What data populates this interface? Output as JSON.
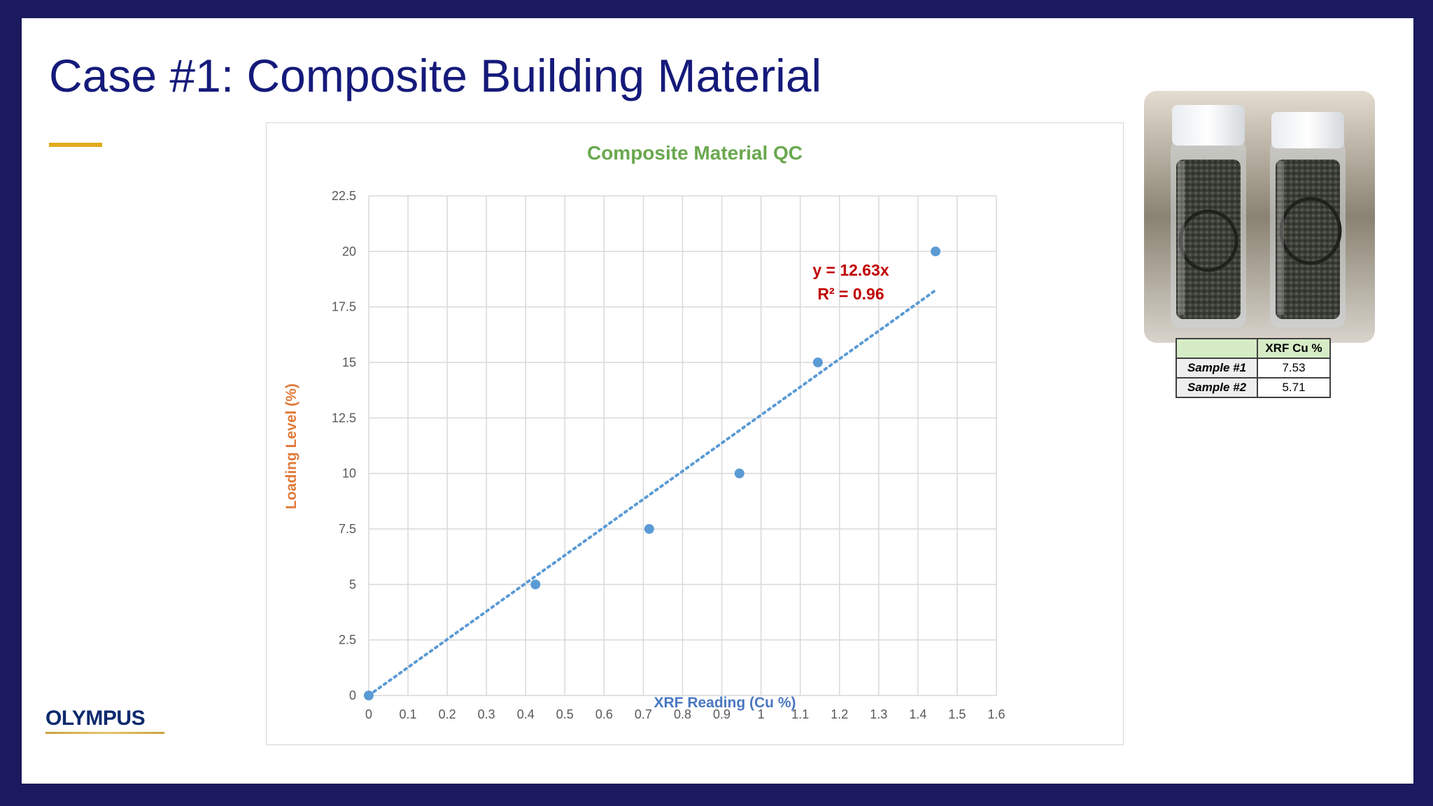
{
  "slide": {
    "title": "Case #1: Composite Building Material",
    "logo_text": "OLYMPUS"
  },
  "colors": {
    "title": "#151a7a",
    "accent": "#e2aa1c",
    "chart_title": "#6aa84f",
    "ylabel": "#e07b39",
    "xlabel": "#4a77c0",
    "points": "#5b9bd5",
    "equation": "#c00000"
  },
  "chart_data": {
    "type": "scatter",
    "title": "Composite Material QC",
    "xlabel": "XRF Reading (Cu %)",
    "ylabel": "Loading Level (%)",
    "xlim": [
      0,
      1.6
    ],
    "ylim": [
      0,
      22.5
    ],
    "xticks": [
      "0",
      "0.1",
      "0.2",
      "0.3",
      "0.4",
      "0.5",
      "0.6",
      "0.7",
      "0.8",
      "0.9",
      "1",
      "1.1",
      "1.2",
      "1.3",
      "1.4",
      "1.5",
      "1.6"
    ],
    "yticks": [
      "0",
      "2.5",
      "5",
      "7.5",
      "10",
      "12.5",
      "15",
      "17.5",
      "20",
      "22.5"
    ],
    "grid": true,
    "points": [
      {
        "x": 0,
        "y": 0
      },
      {
        "x": 0.425,
        "y": 5
      },
      {
        "x": 0.715,
        "y": 7.5
      },
      {
        "x": 0.945,
        "y": 10
      },
      {
        "x": 1.145,
        "y": 15
      },
      {
        "x": 1.445,
        "y": 20
      }
    ],
    "trendline": {
      "slope": 12.63,
      "x_range": [
        0,
        1.445
      ],
      "equation": "y = 12.63x",
      "r2": "R² = 0.96"
    }
  },
  "xrf_table": {
    "header": "XRF Cu %",
    "rows": [
      {
        "label": "Sample #1",
        "value": "7.53"
      },
      {
        "label": "Sample #2",
        "value": "5.71"
      }
    ]
  }
}
